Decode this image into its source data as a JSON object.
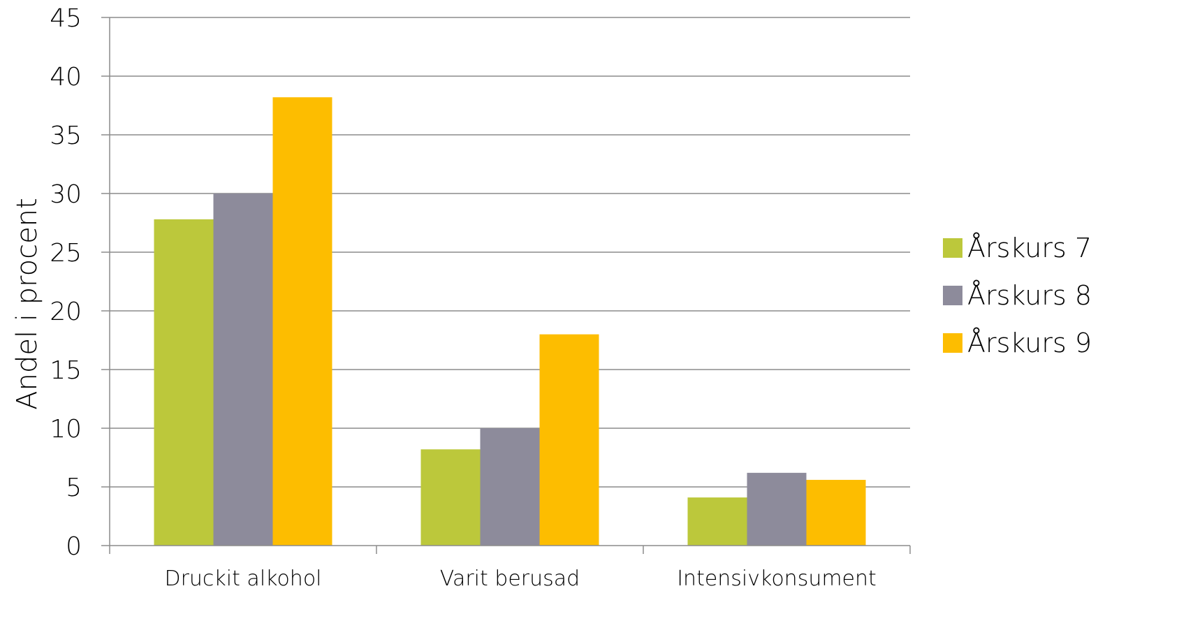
{
  "chart_data": {
    "type": "bar",
    "categories": [
      "Druckit alkohol",
      "Varit berusad",
      "Intensivkonsument"
    ],
    "series": [
      {
        "name": "Årskurs 7",
        "values": [
          27.8,
          8.2,
          4.1
        ],
        "color": "#bcc83b"
      },
      {
        "name": "Årskurs 8",
        "values": [
          30.0,
          10.0,
          6.2
        ],
        "color": "#8d8b9b"
      },
      {
        "name": "Årskurs 9",
        "values": [
          38.2,
          18.0,
          5.6
        ],
        "color": "#fdbd00"
      }
    ],
    "title": "",
    "xlabel": "",
    "ylabel": "Andel i procent",
    "ylim": [
      0,
      45
    ],
    "yticks": [
      0,
      5,
      10,
      15,
      20,
      25,
      30,
      35,
      40,
      45
    ],
    "grid": true,
    "legend_position": "right"
  }
}
